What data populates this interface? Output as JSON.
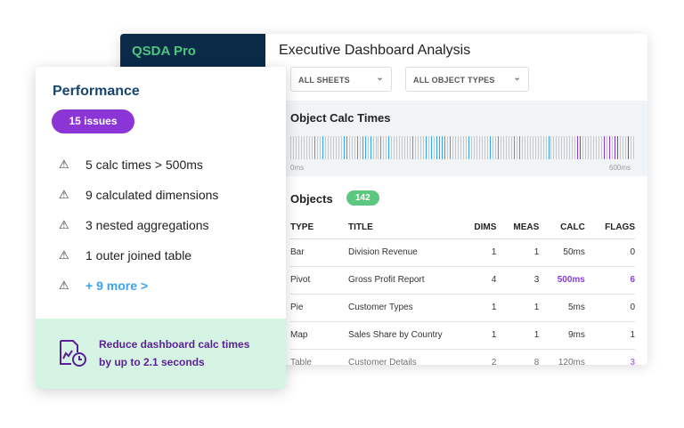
{
  "app": {
    "logo": "QSDA Pro",
    "title": "Executive Dashboard Analysis"
  },
  "filters": [
    {
      "value": "ALL SHEETS"
    },
    {
      "value": "ALL OBJECT TYPES"
    }
  ],
  "calc_times": {
    "heading": "Object Calc Times",
    "axis_min_label": "0ms",
    "axis_max_label": "600ms",
    "tick_count": 130,
    "blue_ticks": [
      9,
      12,
      20,
      21,
      25,
      27,
      28,
      30,
      34,
      37,
      46,
      51,
      53,
      55,
      56,
      57,
      58,
      60,
      67,
      75,
      78,
      84,
      86,
      97
    ],
    "purple_ticks": [
      108,
      109,
      118,
      120,
      122,
      123,
      127
    ],
    "colors": {
      "normal": "#c9c9c9",
      "blue": "#3aa3f5",
      "purple": "#8a3ddc"
    }
  },
  "objects": {
    "heading": "Objects",
    "count": "142",
    "columns": [
      "TYPE",
      "TITLE",
      "DIMS",
      "MEAS",
      "CALC",
      "FLAGS"
    ],
    "rows": [
      {
        "type": "Bar",
        "title": "Division Revenue",
        "dims": "1",
        "meas": "1",
        "calc": "50ms",
        "flags": "0",
        "highlight_calc": false,
        "highlight_flags": false
      },
      {
        "type": "Pivot",
        "title": "Gross Profit Report",
        "dims": "4",
        "meas": "3",
        "calc": "500ms",
        "flags": "6",
        "highlight_calc": true,
        "highlight_flags": true
      },
      {
        "type": "Pie",
        "title": "Customer Types",
        "dims": "1",
        "meas": "1",
        "calc": "5ms",
        "flags": "0",
        "highlight_calc": false,
        "highlight_flags": false
      },
      {
        "type": "Map",
        "title": "Sales Share by Country",
        "dims": "1",
        "meas": "1",
        "calc": "9ms",
        "flags": "1",
        "highlight_calc": false,
        "highlight_flags": false
      },
      {
        "type": "Table",
        "title": "Customer Details",
        "dims": "2",
        "meas": "8",
        "calc": "120ms",
        "flags": "3",
        "highlight_calc": false,
        "highlight_flags": true
      }
    ]
  },
  "performance": {
    "title": "Performance",
    "issues_badge": "15 issues",
    "items": [
      "5 calc times > 500ms",
      "9 calculated dimensions",
      "3 nested aggregations",
      "1 outer joined table"
    ],
    "more_link": "+ 9 more >",
    "footer_line1": "Reduce dashboard calc times",
    "footer_line2": "by up to 2.1 seconds"
  }
}
